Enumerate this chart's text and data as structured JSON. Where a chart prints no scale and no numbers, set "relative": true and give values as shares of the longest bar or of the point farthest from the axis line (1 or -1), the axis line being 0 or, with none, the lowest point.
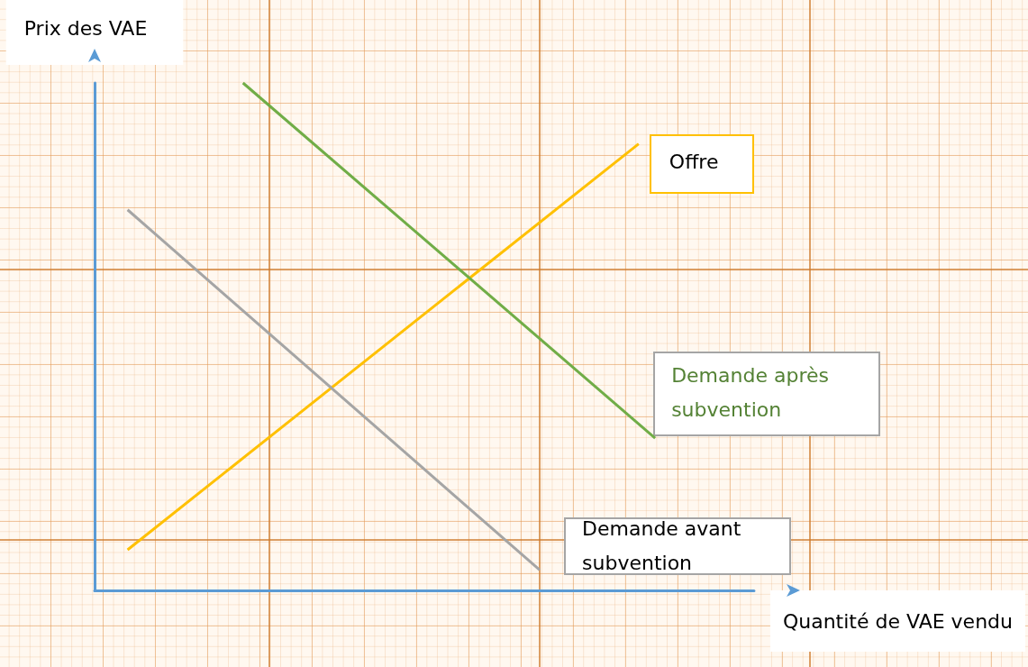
{
  "chart_data": {
    "type": "line",
    "relative": true,
    "xlabel": "Quantité de VAE vendu",
    "ylabel": "Prix des VAE",
    "legend": false,
    "grid": false,
    "marker": "none",
    "line_style": "solid",
    "categories": [
      null,
      null,
      null,
      null,
      null,
      null,
      null,
      null,
      null,
      null,
      null,
      null,
      null,
      null,
      null,
      null,
      null,
      null,
      null,
      null,
      null,
      null,
      null,
      null,
      null,
      null,
      null,
      null,
      null,
      null,
      null,
      null,
      null,
      null,
      null,
      null,
      null,
      null,
      null,
      null,
      null
    ],
    "series": [
      {
        "name": "Offre",
        "color": "#ffc000",
        "values": [
          null,
          null,
          0.08,
          null,
          null,
          null,
          null,
          null,
          null,
          null,
          null,
          null,
          null,
          null,
          null,
          null,
          null,
          null,
          null,
          null,
          null,
          null,
          null,
          null,
          null,
          null,
          null,
          null,
          null,
          null,
          null,
          null,
          null,
          0.88,
          null,
          null,
          null,
          null,
          null,
          null,
          null
        ]
      },
      {
        "name": "Demande après subvention",
        "color": "#70ad47",
        "values": [
          null,
          null,
          null,
          null,
          null,
          null,
          null,
          null,
          null,
          1.0,
          null,
          null,
          null,
          null,
          null,
          null,
          null,
          null,
          null,
          null,
          null,
          null,
          null,
          null,
          null,
          null,
          null,
          null,
          null,
          null,
          null,
          null,
          null,
          null,
          0.3,
          null,
          null,
          null,
          null,
          null,
          null
        ]
      },
      {
        "name": "Demande avant subvention",
        "color": "#a5a5a5",
        "values": [
          null,
          null,
          0.75,
          null,
          null,
          null,
          null,
          null,
          null,
          null,
          null,
          null,
          null,
          null,
          null,
          null,
          null,
          null,
          null,
          null,
          null,
          null,
          null,
          null,
          null,
          null,
          null,
          0.04,
          null,
          null,
          null,
          null,
          null,
          null,
          null,
          null,
          null,
          null,
          null,
          null,
          null
        ]
      }
    ]
  }
}
